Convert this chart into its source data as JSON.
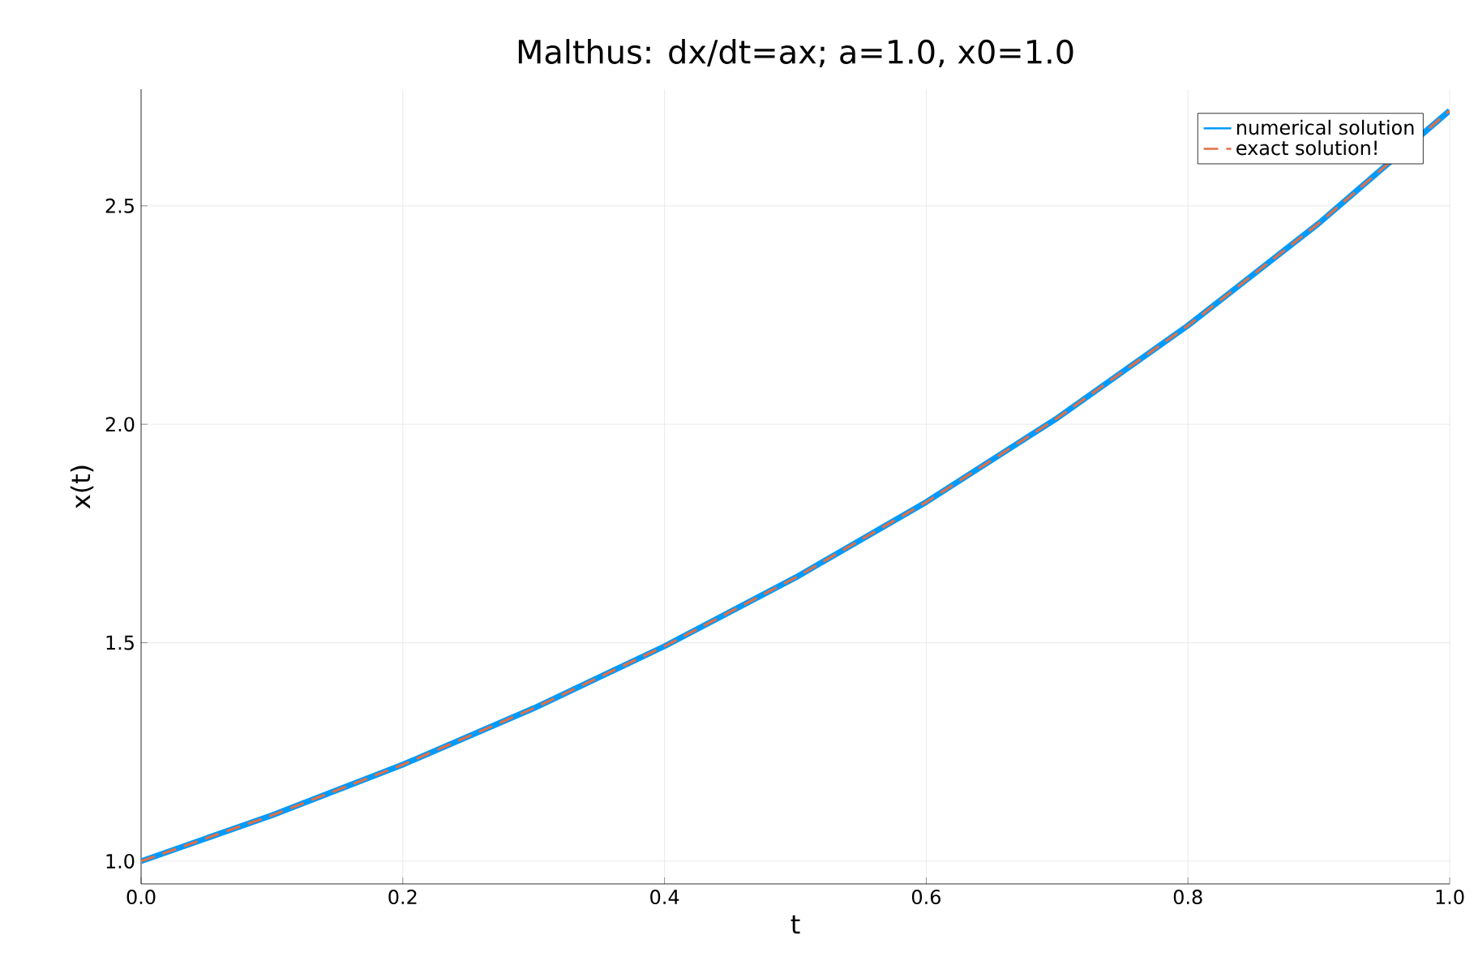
{
  "chart_data": {
    "type": "line",
    "title": "Malthus: dx/dt=ax; a=1.0, x0=1.0",
    "xlabel": "t",
    "ylabel": "x(t)",
    "x": [
      0,
      0.1,
      0.2,
      0.3,
      0.4,
      0.5,
      0.6,
      0.7,
      0.8,
      0.9,
      1.0
    ],
    "series": [
      {
        "name": "numerical solution",
        "color": "#009afa",
        "line_style": "solid",
        "values": [
          1.0,
          1.105,
          1.221,
          1.35,
          1.492,
          1.649,
          1.822,
          2.014,
          2.226,
          2.46,
          2.718
        ]
      },
      {
        "name": "exact solution!",
        "color": "#e26f46",
        "line_style": "dashed",
        "values": [
          1.0,
          1.105,
          1.221,
          1.35,
          1.492,
          1.649,
          1.822,
          2.014,
          2.226,
          2.46,
          2.718
        ]
      }
    ],
    "xlim": [
      0,
      1
    ],
    "ylim": [
      0.948,
      2.767
    ],
    "xticks": [
      {
        "value": 0,
        "label": "0.0"
      },
      0.2,
      0.4,
      0.6,
      0.8,
      {
        "value": 1,
        "label": "1.0"
      }
    ],
    "yticks": [
      {
        "value": 1,
        "label": "1.0"
      },
      1.5,
      {
        "value": 2,
        "label": "2.0"
      },
      2.5
    ],
    "grid": true,
    "legend": "top right",
    "marker": "none"
  }
}
